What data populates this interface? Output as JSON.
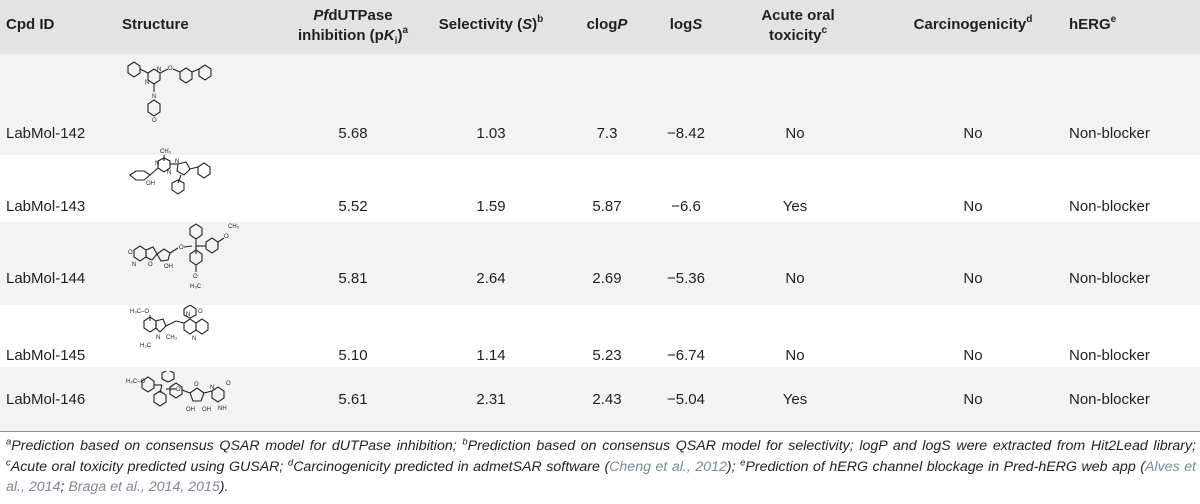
{
  "table": {
    "headers": {
      "cpd_id": "Cpd ID",
      "structure": "Structure",
      "pki_pf": "Pf",
      "pki_rest": "dUTPase",
      "pki_line2a": "inhibition (p",
      "pki_k": "K",
      "pki_i": "i",
      "pki_close": ")",
      "pki_sup": "a",
      "selectivity": "Selectivity (",
      "selectivity_s": "S",
      "selectivity_close": ")",
      "selectivity_sup": "b",
      "clogp": "clog",
      "clogp_p": "P",
      "logs": "log",
      "logs_s": "S",
      "acute_line1": "Acute oral",
      "acute_line2": "toxicity",
      "acute_sup": "c",
      "carcino": "Carcinogenicity",
      "carcino_sup": "d",
      "herg": "hERG",
      "herg_sup": "e"
    },
    "rows": [
      {
        "id": "LabMol-142",
        "structure_icon": "labmol-142-structure",
        "pki": "5.68",
        "selectivity": "1.03",
        "clogp": "7.3",
        "logs": "−8.42",
        "acute": "No",
        "carcino": "No",
        "herg": "Non-blocker"
      },
      {
        "id": "LabMol-143",
        "structure_icon": "labmol-143-structure",
        "pki": "5.52",
        "selectivity": "1.59",
        "clogp": "5.87",
        "logs": "−6.6",
        "acute": "Yes",
        "carcino": "No",
        "herg": "Non-blocker"
      },
      {
        "id": "LabMol-144",
        "structure_icon": "labmol-144-structure",
        "pki": "5.81",
        "selectivity": "2.64",
        "clogp": "2.69",
        "logs": "−5.36",
        "acute": "No",
        "carcino": "No",
        "herg": "Non-blocker"
      },
      {
        "id": "LabMol-145",
        "structure_icon": "labmol-145-structure",
        "pki": "5.10",
        "selectivity": "1.14",
        "clogp": "5.23",
        "logs": "−6.74",
        "acute": "No",
        "carcino": "No",
        "herg": "Non-blocker"
      },
      {
        "id": "LabMol-146",
        "structure_icon": "labmol-146-structure",
        "pki": "5.61",
        "selectivity": "2.31",
        "clogp": "2.43",
        "logs": "−5.04",
        "acute": "Yes",
        "carcino": "No",
        "herg": "Non-blocker"
      }
    ],
    "structure_labels": {
      "ch3": "CH₃",
      "oh": "OH",
      "h3c": "H₃C",
      "h3c_o": "H₃C–O",
      "o": "O",
      "n": "N",
      "nh": "NH"
    }
  },
  "footnote": {
    "sup_a": "a",
    "text_a": "Prediction based on consensus QSAR model for dUTPase inhibition; ",
    "sup_b": "b",
    "text_b": "Prediction based on consensus QSAR model for selectivity; logP and logS were extracted from Hit2Lead library; ",
    "sup_c": "c",
    "text_c": "Acute oral toxicity predicted using GUSAR; ",
    "sup_d": "d",
    "text_d": "Carcinogenicity predicted in admetSAR software (",
    "cite_1": "Cheng et al., 2012",
    "text_d2": "); ",
    "sup_e": "e",
    "text_e": "Prediction of hERG channel blockage in Pred-hERG web app (",
    "cite_2": "Alves et al., 2014",
    "sep": "; ",
    "cite_3": "Braga et al., 2014, 2015",
    "text_end": ")."
  }
}
